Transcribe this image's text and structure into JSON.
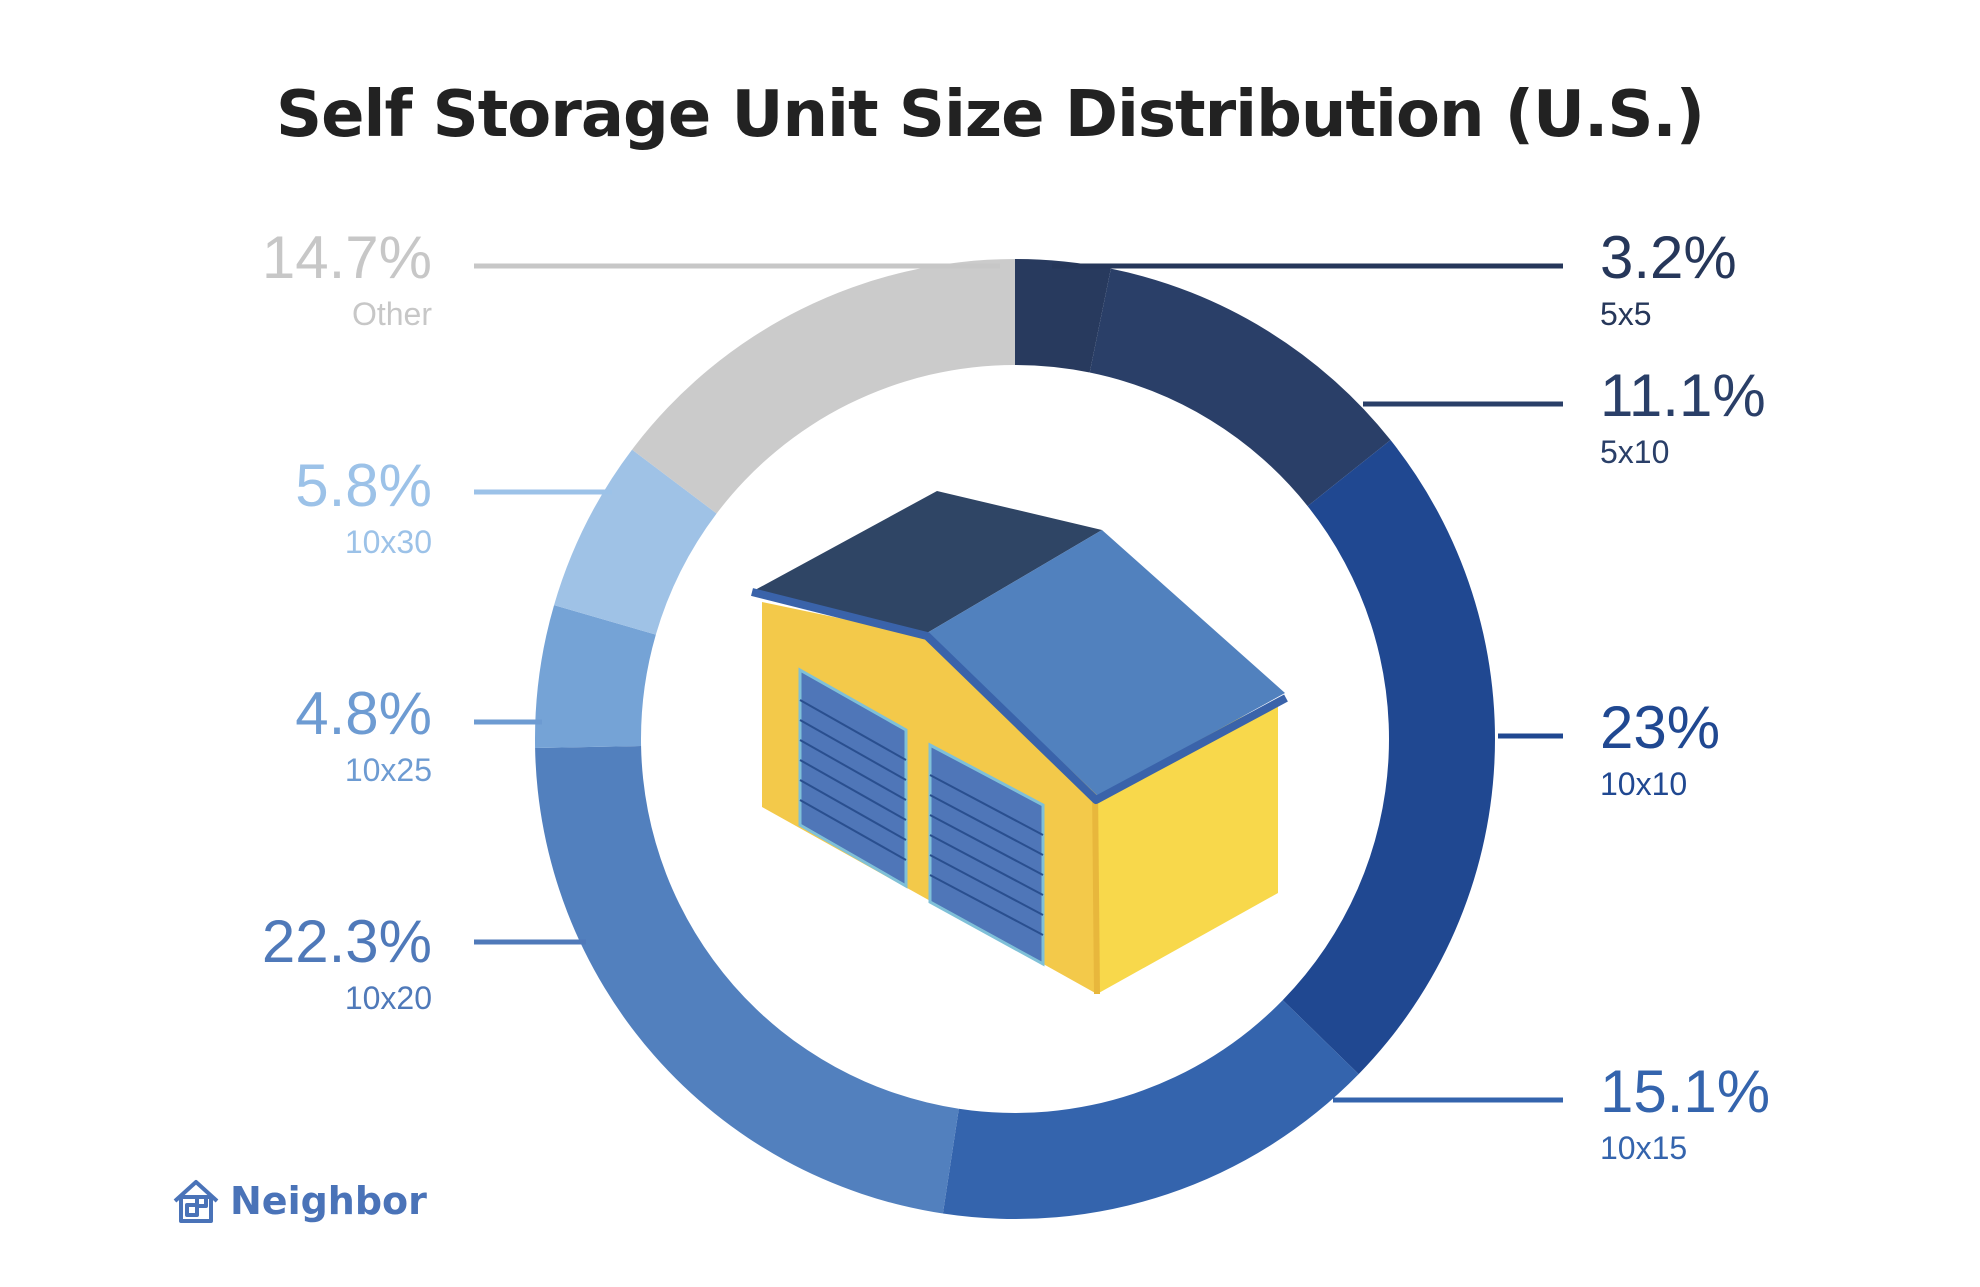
{
  "title": "Self Storage Unit Size Distribution (U.S.)",
  "brand": {
    "name": "Neighbor",
    "icon": "house-icon",
    "color": "#4a73b8"
  },
  "chart_data": {
    "type": "pie",
    "style": "donut",
    "title": "Self Storage Unit Size Distribution (U.S.)",
    "unit": "%",
    "slices": [
      {
        "category": "5x5",
        "value": 3.2,
        "label": "3.2%",
        "color": "#283a5e"
      },
      {
        "category": "5x10",
        "value": 11.1,
        "label": "11.1%",
        "color": "#2a3f68"
      },
      {
        "category": "10x10",
        "value": 23,
        "label": "23%",
        "color": "#204891"
      },
      {
        "category": "10x15",
        "value": 15.1,
        "label": "15.1%",
        "color": "#3464ad"
      },
      {
        "category": "10x20",
        "value": 22.3,
        "label": "22.3%",
        "color": "#5280be"
      },
      {
        "category": "10x25",
        "value": 4.8,
        "label": "4.8%",
        "color": "#75a3d6"
      },
      {
        "category": "10x30",
        "value": 5.8,
        "label": "5.8%",
        "color": "#9fc2e6"
      },
      {
        "category": "Other",
        "value": 14.7,
        "label": "14.7%",
        "color": "#cbcbcb"
      }
    ],
    "label_colors": {
      "5x5": "#26375a",
      "5x10": "#2a3f68",
      "10x10": "#204891",
      "10x15": "#3464ad",
      "10x20": "#4f79b9",
      "10x25": "#6d9bd2",
      "10x30": "#9cc2e8",
      "Other": "#c7c7c7"
    },
    "center_illustration": "storage-building-icon"
  }
}
